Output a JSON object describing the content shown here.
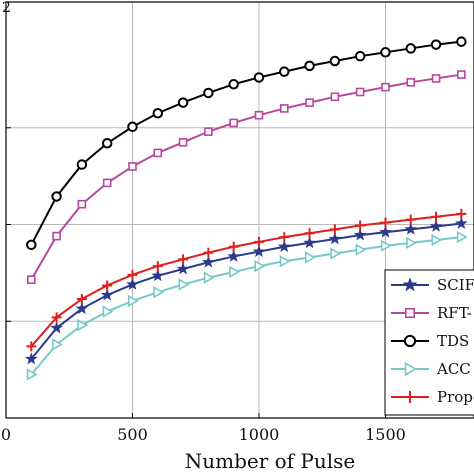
{
  "chart_data": {
    "type": "line",
    "title": "",
    "xlabel": "Number of Pulse",
    "ylabel": "",
    "corner_text": "2",
    "xlim": [
      0,
      1850
    ],
    "ylim": [
      0,
      2.15
    ],
    "xticks": [
      0,
      500,
      1000,
      1500
    ],
    "xtick_labels": [
      "0",
      "500",
      "1000",
      "1500"
    ],
    "yticks": [
      0.5,
      1.0,
      1.5
    ],
    "grid": true,
    "legend_position": "right",
    "x": [
      100,
      200,
      300,
      400,
      500,
      600,
      700,
      800,
      900,
      1000,
      1100,
      1200,
      1300,
      1400,
      1500,
      1600,
      1700,
      1800
    ],
    "series": [
      {
        "name": "SCIF",
        "color": "#2b3a8c",
        "marker": "star",
        "values": [
          0.305,
          0.465,
          0.565,
          0.635,
          0.69,
          0.735,
          0.77,
          0.805,
          0.835,
          0.86,
          0.885,
          0.905,
          0.925,
          0.945,
          0.96,
          0.975,
          0.99,
          1.005
        ]
      },
      {
        "name": "RFT-",
        "color": "#b8479d",
        "marker": "square",
        "values": [
          0.715,
          0.94,
          1.105,
          1.215,
          1.3,
          1.37,
          1.425,
          1.48,
          1.525,
          1.565,
          1.6,
          1.63,
          1.66,
          1.685,
          1.71,
          1.735,
          1.755,
          1.775
        ]
      },
      {
        "name": "TDS",
        "color": "#000000",
        "marker": "circle",
        "values": [
          0.895,
          1.145,
          1.31,
          1.42,
          1.505,
          1.575,
          1.63,
          1.68,
          1.725,
          1.76,
          1.79,
          1.82,
          1.845,
          1.87,
          1.89,
          1.91,
          1.93,
          1.945
        ]
      },
      {
        "name": "ACC",
        "color": "#76c9c9",
        "marker": "triangle-right",
        "values": [
          0.225,
          0.38,
          0.48,
          0.55,
          0.605,
          0.65,
          0.69,
          0.725,
          0.755,
          0.785,
          0.81,
          0.83,
          0.85,
          0.87,
          0.89,
          0.905,
          0.92,
          0.935
        ]
      },
      {
        "name": "Prope",
        "color": "#e01e1e",
        "marker": "plus",
        "values": [
          0.37,
          0.52,
          0.615,
          0.685,
          0.74,
          0.785,
          0.82,
          0.855,
          0.885,
          0.91,
          0.935,
          0.955,
          0.975,
          0.995,
          1.01,
          1.025,
          1.04,
          1.055
        ]
      }
    ]
  }
}
